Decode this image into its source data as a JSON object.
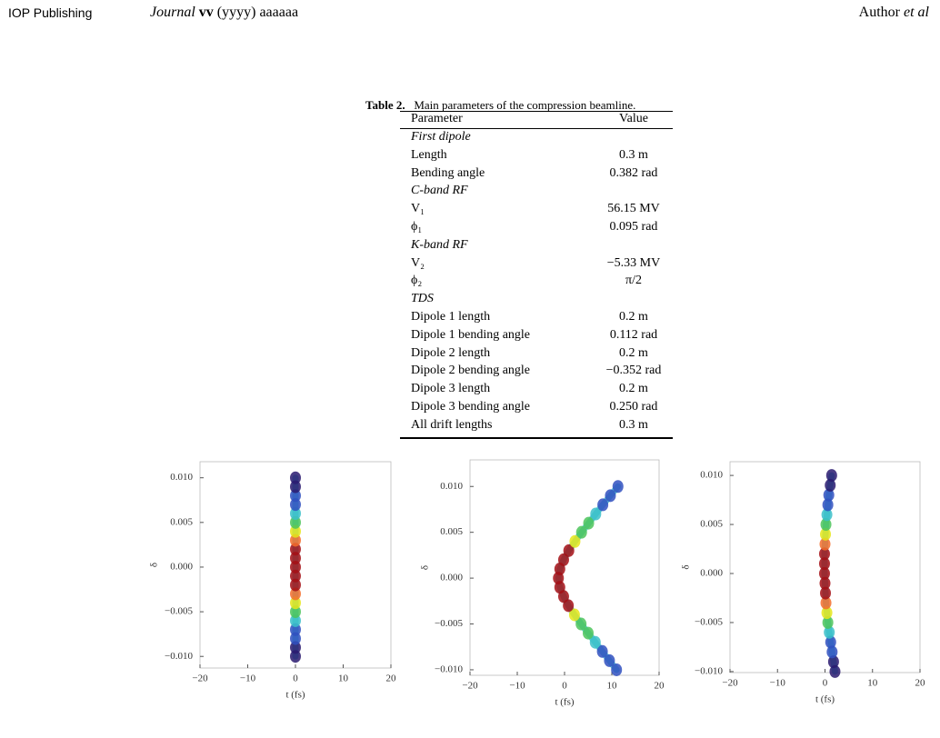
{
  "header": {
    "publisher": "IOP Publishing",
    "journal": "Journal",
    "volume": "vv",
    "year": "(yyyy)",
    "article": "aaaaaa",
    "author": "Author",
    "etal": "et al"
  },
  "table": {
    "label": "Table 2.",
    "caption": "Main parameters of the compression beamline.",
    "columns": [
      "Parameter",
      "Value"
    ],
    "rows": [
      {
        "section": "First dipole"
      },
      [
        "Length",
        "0.3 m"
      ],
      [
        "Bending angle",
        "0.382 rad"
      ],
      {
        "section": "C-band RF"
      },
      [
        "V₁",
        "56.15 MV"
      ],
      [
        "ϕ₁",
        "0.095 rad"
      ],
      {
        "section": "K-band RF"
      },
      [
        "V₂",
        "−5.33 MV"
      ],
      [
        "ϕ₂",
        "π/2"
      ],
      {
        "section": "TDS"
      },
      [
        "Dipole 1 length",
        "0.2 m"
      ],
      [
        "Dipole 1 bending angle",
        "0.112 rad"
      ],
      [
        "Dipole 2 length",
        "0.2 m"
      ],
      [
        "Dipole 2 bending angle",
        "−0.352 rad"
      ],
      [
        "Dipole 3 length",
        "0.2 m"
      ],
      [
        "Dipole 3 bending angle",
        "0.250 rad"
      ],
      [
        "All drift lengths",
        "0.3 m"
      ]
    ]
  },
  "chart_data": [
    {
      "type": "scatter",
      "xlabel": "t (fs)",
      "ylabel": "δ",
      "line_color": "#3bbfc9",
      "xlim": [
        -20,
        20
      ],
      "ylim": [
        -0.0113,
        0.0118
      ],
      "xticks": [
        {
          "value": -20,
          "label": "−20"
        },
        {
          "value": -10,
          "label": "−10"
        },
        0,
        10,
        20
      ],
      "yticks": [
        {
          "value": -0.01,
          "label": "−0.010"
        },
        {
          "value": -0.005,
          "label": "−0.005"
        },
        {
          "value": 0,
          "label": "0.000"
        },
        {
          "value": 0.005,
          "label": "0.005"
        },
        {
          "value": 0.01,
          "label": "0.010"
        }
      ],
      "x": [
        0,
        0,
        0,
        0,
        0,
        0,
        0,
        0,
        0,
        0,
        0,
        0,
        0,
        0,
        0,
        0,
        0,
        0,
        0,
        0,
        0
      ],
      "values": [
        -0.01,
        -0.009,
        -0.008,
        -0.007,
        -0.006,
        -0.005,
        -0.004,
        -0.003,
        -0.002,
        -0.001,
        0,
        0.001,
        0.002,
        0.003,
        0.004,
        0.005,
        0.006,
        0.007,
        0.008,
        0.009,
        0.01
      ],
      "colors": [
        "#2a1a70",
        "#2a1a70",
        "#3050c0",
        "#3050c0",
        "#3bbfc9",
        "#4cc45a",
        "#e6e61a",
        "#f46d2b",
        "#a50f15",
        "#a50f15",
        "#a50f15",
        "#a50f15",
        "#a50f15",
        "#f46d2b",
        "#e6e61a",
        "#4cc45a",
        "#3bbfc9",
        "#3050c0",
        "#3050c0",
        "#2a1a70",
        "#2a1a70"
      ]
    },
    {
      "type": "scatter",
      "xlabel": "t (fs)",
      "ylabel": "δ",
      "line_color": "#3bbfc9",
      "xlim": [
        -20,
        20
      ],
      "ylim": [
        -0.0106,
        0.0129
      ],
      "xticks": [
        {
          "value": -20,
          "label": "−20"
        },
        {
          "value": -10,
          "label": "−10"
        },
        0,
        10,
        20
      ],
      "yticks": [
        {
          "value": -0.01,
          "label": "−0.010"
        },
        {
          "value": -0.005,
          "label": "−0.005"
        },
        {
          "value": 0,
          "label": "0.000"
        },
        {
          "value": 0.005,
          "label": "0.005"
        },
        {
          "value": 0.01,
          "label": "0.010"
        }
      ],
      "x": [
        11.0,
        9.5,
        8.0,
        6.5,
        5.0,
        3.5,
        2.1,
        0.8,
        -0.2,
        -1.0,
        -1.3,
        -1.0,
        -0.2,
        0.9,
        2.2,
        3.6,
        5.1,
        6.6,
        8.1,
        9.7,
        11.3
      ],
      "values": [
        -0.01,
        -0.009,
        -0.008,
        -0.007,
        -0.006,
        -0.005,
        -0.004,
        -0.003,
        -0.002,
        -0.001,
        0,
        0.001,
        0.002,
        0.003,
        0.004,
        0.005,
        0.006,
        0.007,
        0.008,
        0.009,
        0.01
      ],
      "colors": [
        "#3050c0",
        "#3050c0",
        "#3050c0",
        "#3bbfc9",
        "#4cc45a",
        "#4cc45a",
        "#e6e61a",
        "#a50f15",
        "#a50f15",
        "#a50f15",
        "#a50f15",
        "#a50f15",
        "#a50f15",
        "#a50f15",
        "#e6e61a",
        "#4cc45a",
        "#4cc45a",
        "#3bbfc9",
        "#3050c0",
        "#3050c0",
        "#3050c0"
      ]
    },
    {
      "type": "scatter",
      "xlabel": "t (fs)",
      "ylabel": "δ",
      "line_color": "#3bbfc9",
      "xlim": [
        -20,
        20
      ],
      "ylim": [
        -0.0101,
        0.0114
      ],
      "xticks": [
        {
          "value": -20,
          "label": "−20"
        },
        {
          "value": -10,
          "label": "−10"
        },
        0,
        10,
        20
      ],
      "yticks": [
        {
          "value": -0.01,
          "label": "−0.010"
        },
        {
          "value": -0.005,
          "label": "−0.005"
        },
        {
          "value": 0,
          "label": "0.000"
        },
        {
          "value": 0.005,
          "label": "0.005"
        },
        {
          "value": 0.01,
          "label": "0.010"
        }
      ],
      "x": [
        2.1,
        1.8,
        1.5,
        1.2,
        0.9,
        0.6,
        0.4,
        0.2,
        0.1,
        0,
        -0.1,
        -0.1,
        -0.1,
        0,
        0.1,
        0.2,
        0.4,
        0.6,
        0.8,
        1.1,
        1.4
      ],
      "values": [
        -0.01,
        -0.009,
        -0.008,
        -0.007,
        -0.006,
        -0.005,
        -0.004,
        -0.003,
        -0.002,
        -0.001,
        0,
        0.001,
        0.002,
        0.003,
        0.004,
        0.005,
        0.006,
        0.007,
        0.008,
        0.009,
        0.01
      ],
      "colors": [
        "#2a1a70",
        "#2a1a70",
        "#3050c0",
        "#3050c0",
        "#3bbfc9",
        "#4cc45a",
        "#e6e61a",
        "#f46d2b",
        "#a50f15",
        "#a50f15",
        "#a50f15",
        "#a50f15",
        "#a50f15",
        "#f46d2b",
        "#e6e61a",
        "#4cc45a",
        "#3bbfc9",
        "#3050c0",
        "#3050c0",
        "#2a1a70",
        "#2a1a70"
      ]
    }
  ]
}
